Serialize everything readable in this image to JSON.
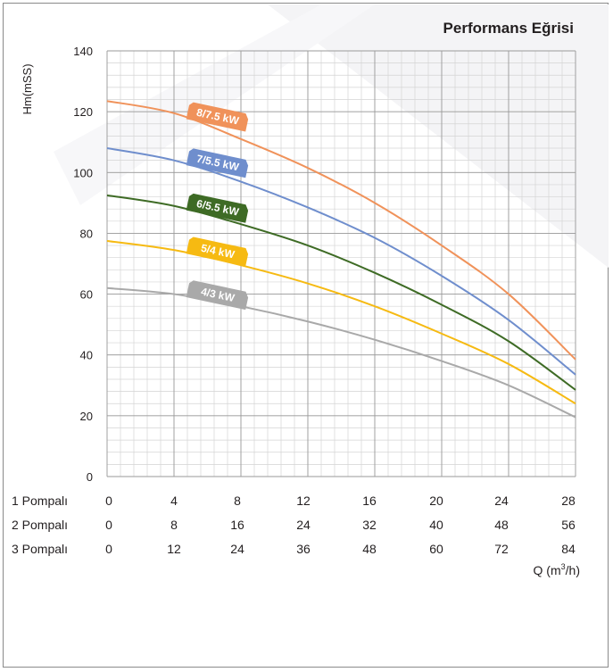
{
  "chart_data": {
    "type": "line",
    "title": "Performans Eğrisi",
    "ylabel": "Hm(mSS)",
    "xlabel": "Q (m³/h)",
    "xlabel_main": "Q (m",
    "xlabel_sup": "3",
    "xlabel_tail": "/h)",
    "xlim": [
      0,
      28
    ],
    "ylim": [
      0,
      140
    ],
    "y_ticks": [
      0,
      20,
      40,
      60,
      80,
      100,
      120,
      140
    ],
    "grid": true,
    "x_rows": [
      {
        "label": "1 Pompalı",
        "values": [
          "0",
          "4",
          "8",
          "12",
          "16",
          "20",
          "24",
          "28"
        ]
      },
      {
        "label": "2 Pompalı",
        "values": [
          "0",
          "8",
          "16",
          "24",
          "32",
          "40",
          "48",
          "56"
        ]
      },
      {
        "label": "3 Pompalı",
        "values": [
          "0",
          "12",
          "24",
          "36",
          "48",
          "60",
          "72",
          "84"
        ]
      }
    ],
    "series": [
      {
        "name": "8/7.5 kW",
        "color": "#f0925a",
        "x": [
          0,
          4,
          8,
          12,
          16,
          20,
          24,
          28
        ],
        "y": [
          123.5,
          119.5,
          111,
          101.5,
          90,
          76,
          60,
          38.5
        ]
      },
      {
        "name": "7/5.5 kW",
        "color": "#6f8ecd",
        "x": [
          0,
          4,
          8,
          12,
          16,
          20,
          24,
          28
        ],
        "y": [
          108,
          104,
          97,
          88.5,
          78.5,
          66,
          51.5,
          33.5
        ]
      },
      {
        "name": "6/5.5 kW",
        "color": "#3e6b25",
        "x": [
          0,
          4,
          8,
          12,
          16,
          20,
          24,
          28
        ],
        "y": [
          92.5,
          89,
          83,
          76,
          67,
          56.5,
          44.5,
          28.5
        ]
      },
      {
        "name": "5/4 kW",
        "color": "#f6ba12",
        "x": [
          0,
          4,
          8,
          12,
          16,
          20,
          24,
          28
        ],
        "y": [
          77.5,
          74.5,
          69.5,
          63.5,
          56,
          47,
          37,
          24
        ]
      },
      {
        "name": "4/3 kW",
        "color": "#a9a9a9",
        "x": [
          0,
          4,
          8,
          12,
          16,
          20,
          24,
          28
        ],
        "y": [
          62,
          60,
          56,
          51,
          45,
          38,
          30,
          19.5
        ]
      }
    ]
  }
}
